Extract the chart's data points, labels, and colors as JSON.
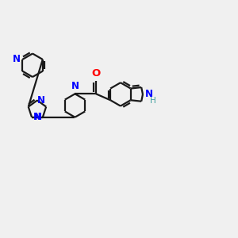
{
  "bg_color": "#f0f0f0",
  "bond_color": "#1a1a1a",
  "n_color": "#0000ff",
  "o_color": "#ff0000",
  "h_color": "#40a0a0",
  "line_width": 1.6,
  "font_size": 8.5,
  "figsize": [
    3.0,
    3.0
  ],
  "dpi": 100,
  "xlim": [
    0,
    10
  ],
  "ylim": [
    -1.5,
    6.5
  ]
}
